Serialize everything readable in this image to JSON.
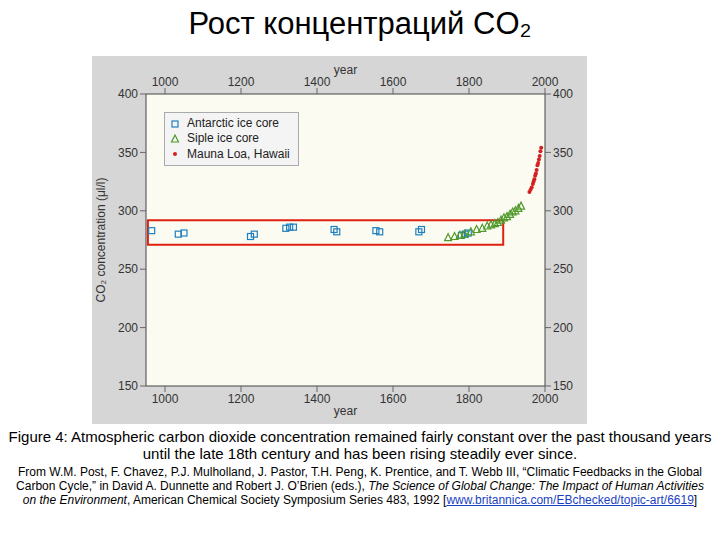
{
  "slide_title": "Рост концентраций CO₂",
  "chart_data": {
    "type": "scatter",
    "x_label": "year",
    "y_label": "CO₂ concentration (μl/l)",
    "xlim": [
      950,
      2000
    ],
    "xticks": [
      1000,
      1200,
      1400,
      1600,
      1800,
      2000
    ],
    "ylim": [
      150,
      400
    ],
    "yticks": [
      150,
      200,
      250,
      300,
      350,
      400
    ],
    "grid": false,
    "legend": "upper left",
    "highlight": {
      "x": [
        955,
        1890
      ],
      "y": [
        271,
        292
      ]
    },
    "series": [
      {
        "name": "Antarctic ice core",
        "color": "#1f7fbf",
        "marker": "square",
        "x": [
          965,
          1035,
          1050,
          1225,
          1235,
          1318,
          1328,
          1338,
          1445,
          1452,
          1555,
          1565,
          1668,
          1675,
          1780,
          1790,
          1798
        ],
        "values": [
          283,
          280,
          281,
          278,
          280,
          285,
          286,
          286,
          284,
          282,
          283,
          282,
          282,
          284,
          279,
          280,
          281
        ]
      },
      {
        "name": "Siple ice core",
        "color": "#4f9a2a",
        "marker": "triangle",
        "x": [
          1745,
          1762,
          1776,
          1788,
          1805,
          1820,
          1835,
          1848,
          1858,
          1868,
          1876,
          1884,
          1892,
          1900,
          1908,
          1915,
          1922,
          1930,
          1937
        ],
        "values": [
          277,
          278,
          279,
          280,
          282,
          284,
          285,
          287,
          288,
          289,
          290,
          292,
          294,
          295,
          297,
          299,
          300,
          302,
          304
        ]
      },
      {
        "name": "Mauna Loa, Hawaii",
        "color": "#d42020",
        "marker": "circle",
        "x": [
          1959,
          1962,
          1965,
          1968,
          1970,
          1972,
          1974,
          1976,
          1978,
          1980,
          1982,
          1984,
          1986,
          1988,
          1990
        ],
        "values": [
          316,
          318,
          320,
          323,
          325,
          327,
          330,
          332,
          335,
          339,
          341,
          344,
          347,
          351,
          354
        ]
      }
    ]
  },
  "caption": "Figure 4: Atmospheric carbon dioxide concentration remained fairly constant over the past thousand years until the late 18th century and has been rising steadily ever since.",
  "source": {
    "before": "From W.M. Post, F. Chavez, P.J. Mulholland, J. Pastor, T.H. Peng, K. Prentice, and T. Webb III, “Climatic Feedbacks in the Global Carbon Cycle,” in David A. Dunnette and Robert J. O’Brien (eds.), ",
    "title": "The Science of Global Change: The Impact of Human Activities on the Environment",
    "after": ", American Chemical Society Symposium Series 483, 1992 [",
    "link": "www.britannica.com/EBchecked/topic-art/6619",
    "end": "]"
  }
}
